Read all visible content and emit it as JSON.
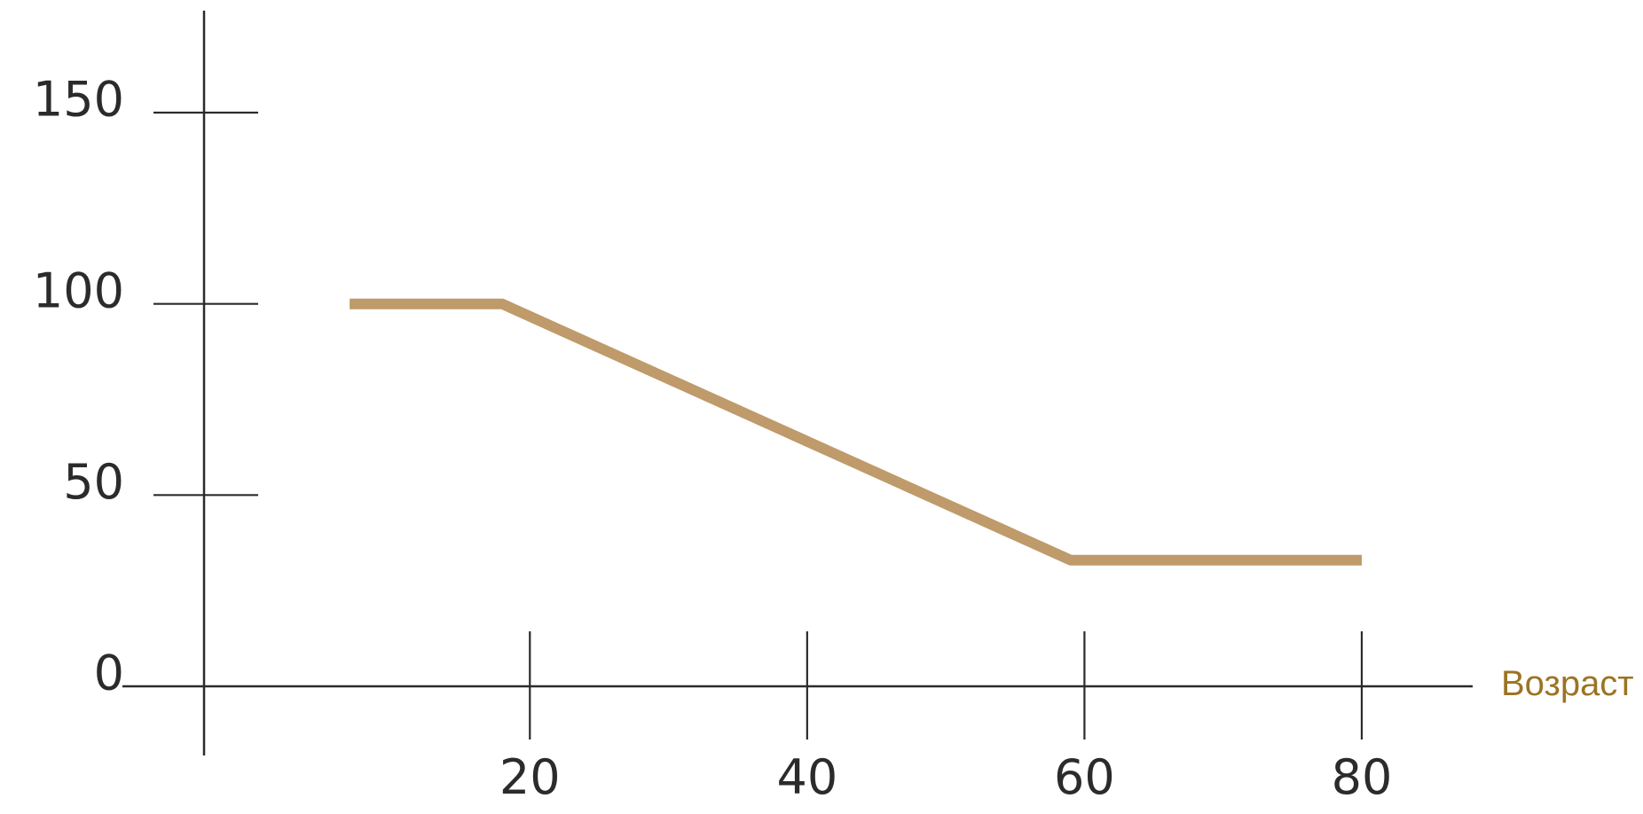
{
  "chart_data": {
    "type": "line",
    "title": "",
    "xlabel": "Возраст",
    "ylabel": "",
    "xlim": [
      -3.5,
      88
    ],
    "ylim": [
      0,
      150
    ],
    "grid": false,
    "x_ticks": [
      20,
      40,
      60,
      80
    ],
    "y_ticks": [
      0,
      50,
      100,
      150
    ],
    "series": [
      {
        "x": [
          7,
          18,
          59,
          80
        ],
        "y": [
          100,
          100,
          33,
          33
        ]
      }
    ],
    "colors": {
      "series": "#bf9a6a",
      "axis": "#2b2b2b",
      "xlabel": "#9b7424"
    }
  }
}
